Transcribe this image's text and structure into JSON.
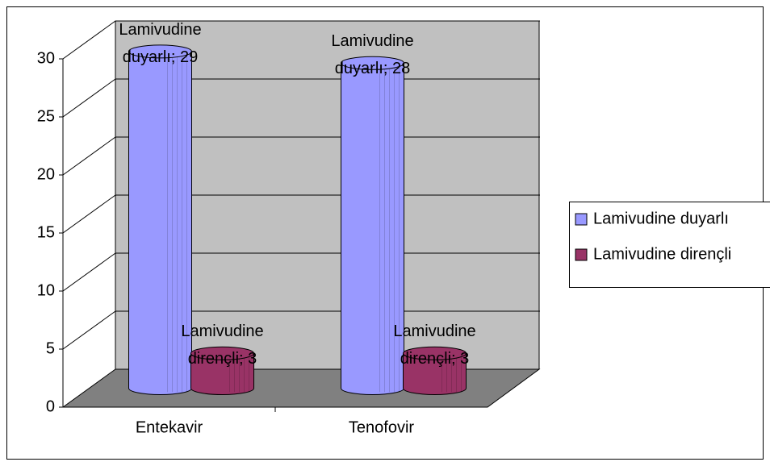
{
  "chart_data": {
    "type": "bar3d",
    "categories": [
      "Entekavir",
      "Tenofovir"
    ],
    "series": [
      {
        "name": "Lamivudine duyarlı",
        "color": "#9999ff",
        "values": [
          29,
          28
        ],
        "value_labels": [
          "Lamivudine duyarlı; 29",
          "Lamivudine duyarlı; 28"
        ]
      },
      {
        "name": "Lamivudine dirençli",
        "color": "#993366",
        "values": [
          3,
          3
        ],
        "value_labels": [
          "Lamivudine dirençli; 3",
          "Lamivudine dirençli; 3"
        ]
      }
    ],
    "ylim": [
      0,
      30
    ],
    "yticks": [
      0,
      5,
      10,
      15,
      20,
      25,
      30
    ],
    "grid": true,
    "legend": "right"
  }
}
